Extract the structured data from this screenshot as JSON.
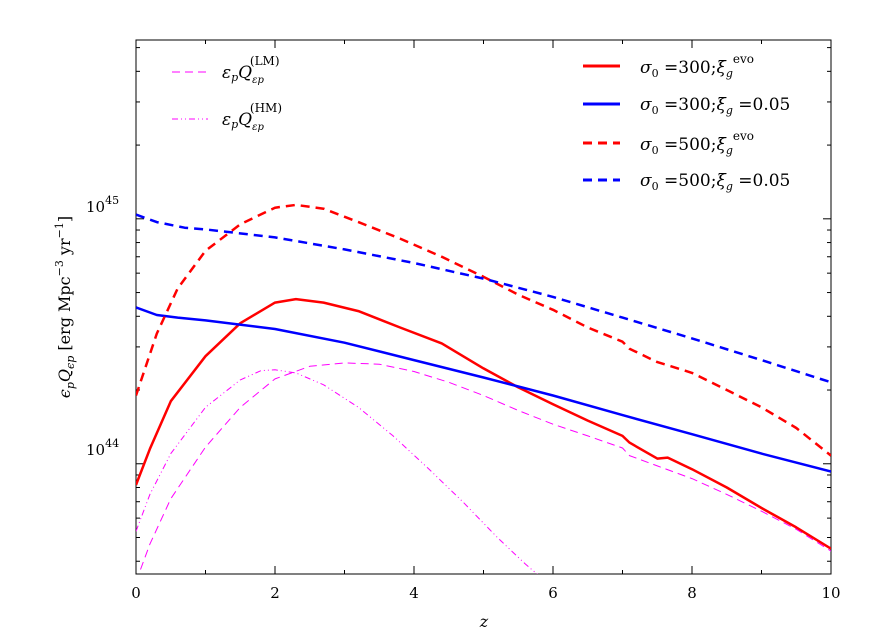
{
  "chart_data": {
    "type": "line",
    "xlabel": "z",
    "ylabel": "ϵ_p Q_{ϵ_p} [erg Mpc^{-3} yr^{-1}]",
    "ylabel_parts": {
      "main": "ε",
      "p": "p",
      "q": "Q",
      "qsub": "εp",
      "units": " [erg Mpc",
      "exp3": "−3",
      "yr": " yr",
      "exp1": "−1",
      "close": "]"
    },
    "xlim": [
      0,
      10
    ],
    "ylim_log10": [
      43.55,
      45.73
    ],
    "yscale": "log",
    "x_ticks": [
      "0",
      "2",
      "4",
      "6",
      "8",
      "10"
    ],
    "y_ticks": [
      {
        "base": "10",
        "exp": "45"
      },
      {
        "base": "10",
        "exp": "44"
      }
    ],
    "legends": {
      "left": [
        {
          "label": "εpQεp",
          "sup": "(LM)",
          "series": "LM"
        },
        {
          "label": "εpQεp",
          "sup": "(HM)",
          "series": "HM"
        }
      ],
      "right": [
        {
          "label": "σ0 =300;ξg",
          "sup": "evo",
          "series": "s300_evo"
        },
        {
          "label": "σ0 =300;ξg =0.05",
          "sup": "",
          "series": "s300_005"
        },
        {
          "label": "σ0 =500;ξg",
          "sup": "evo",
          "series": "s500_evo"
        },
        {
          "label": "σ0 =500;ξg =0.05",
          "sup": "",
          "series": "s500_005"
        }
      ]
    },
    "series": [
      {
        "id": "s300_evo",
        "color": "#ff0000",
        "dash": "solid",
        "x": [
          0,
          0.2,
          0.5,
          1.0,
          1.5,
          2.0,
          2.3,
          2.7,
          3.2,
          3.8,
          4.4,
          5.0,
          5.5,
          6.0,
          6.5,
          7.0,
          7.1,
          7.5,
          7.65,
          8.0,
          8.5,
          9.0,
          9.5,
          10.0
        ],
        "y": [
          8.2e+43,
          1.15e+44,
          1.8e+44,
          2.75e+44,
          3.75e+44,
          4.55e+44,
          4.7e+44,
          4.55e+44,
          4.2e+44,
          3.6e+44,
          3.1e+44,
          2.45e+44,
          2.05e+44,
          1.75e+44,
          1.5e+44,
          1.3e+44,
          1.22e+44,
          1.05e+44,
          1.06e+44,
          9.5e+43,
          8e+43,
          6.6e+43,
          5.5e+43,
          4.5e+43
        ]
      },
      {
        "id": "s300_005",
        "color": "#0000ff",
        "dash": "solid",
        "x": [
          0,
          0.3,
          0.6,
          1.0,
          2.0,
          3.0,
          4.0,
          5.0,
          6.0,
          7.0,
          8.0,
          9.0,
          10.0
        ],
        "y": [
          4.35e+44,
          4.05e+44,
          3.95e+44,
          3.85e+44,
          3.55e+44,
          3.12e+44,
          2.65e+44,
          2.25e+44,
          1.9e+44,
          1.58e+44,
          1.32e+44,
          1.1e+44,
          9.3e+43
        ]
      },
      {
        "id": "s500_evo",
        "color": "#ff0000",
        "dash": "dashed",
        "x": [
          0,
          0.3,
          0.6,
          1.0,
          1.5,
          2.0,
          2.3,
          2.7,
          3.2,
          3.8,
          4.4,
          5.0,
          5.5,
          6.0,
          6.5,
          7.0,
          7.1,
          7.5,
          7.7,
          8.0,
          8.5,
          9.0,
          9.5,
          10.0
        ],
        "y": [
          1.9e+44,
          3.4e+44,
          5.2e+44,
          7.4e+44,
          9.5e+44,
          1.11e+45,
          1.14e+45,
          1.1e+45,
          9.7e+44,
          8.3e+44,
          7e+44,
          5.8e+44,
          4.9e+44,
          4.25e+44,
          3.6e+44,
          3.15e+44,
          2.95e+44,
          2.6e+44,
          2.5e+44,
          2.35e+44,
          2e+44,
          1.7e+44,
          1.4e+44,
          1.08e+44
        ]
      },
      {
        "id": "s500_005",
        "color": "#0000ff",
        "dash": "dashed",
        "x": [
          0,
          0.3,
          0.7,
          1.0,
          2.0,
          3.0,
          4.0,
          5.0,
          6.0,
          7.0,
          8.0,
          9.0,
          10.0
        ],
        "y": [
          1.04e+45,
          9.7e+44,
          9.2e+44,
          9.05e+44,
          8.4e+44,
          7.5e+44,
          6.6e+44,
          5.7e+44,
          4.8e+44,
          3.95e+44,
          3.25e+44,
          2.65e+44,
          2.15e+44
        ]
      },
      {
        "id": "LM",
        "color": "#ff00ff",
        "dash": "longdash",
        "x": [
          0,
          0.2,
          0.5,
          1.0,
          1.5,
          2.0,
          2.5,
          3.0,
          3.5,
          4.0,
          4.5,
          5.0,
          5.5,
          6.0,
          6.5,
          7.0,
          7.1,
          7.5,
          8.0,
          8.5,
          9.0,
          9.5,
          10.0
        ],
        "y": [
          3.3e+43,
          4.7e+43,
          7.2e+43,
          1.17e+44,
          1.7e+44,
          2.22e+44,
          2.5e+44,
          2.58e+44,
          2.55e+44,
          2.38e+44,
          2.15e+44,
          1.9e+44,
          1.65e+44,
          1.45e+44,
          1.3e+44,
          1.16e+44,
          1.08e+44,
          9.8e+43,
          8.7e+43,
          7.5e+43,
          6.4e+43,
          5.4e+43,
          4.4e+43
        ]
      },
      {
        "id": "HM",
        "color": "#ff00ff",
        "dash": "dashdot",
        "x": [
          0,
          0.2,
          0.5,
          1.0,
          1.5,
          1.8,
          2.0,
          2.3,
          2.7,
          3.2,
          3.7,
          4.2,
          4.7,
          5.2,
          5.6,
          5.9,
          6.1,
          6.3
        ],
        "y": [
          5.3e+43,
          7.5e+43,
          1.1e+44,
          1.7e+44,
          2.2e+44,
          2.4e+44,
          2.42e+44,
          2.35e+44,
          2.1e+44,
          1.7e+44,
          1.3e+44,
          9.6e+43,
          7e+43,
          5e+43,
          3.9e+43,
          3.3e+43,
          3e+43,
          2.7e+43
        ]
      }
    ]
  }
}
